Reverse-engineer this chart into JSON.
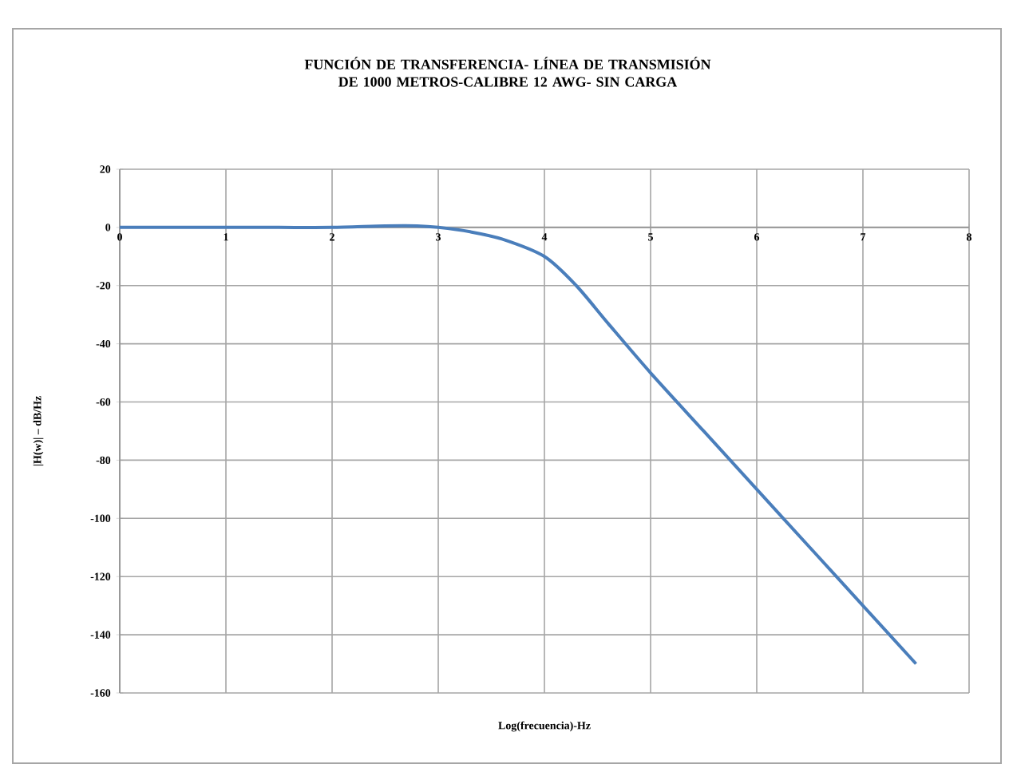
{
  "chart_data": {
    "type": "line",
    "title": "FUNCIÓN DE TRANSFERENCIA- LÍNEA DE TRANSMISIÓN DE 1000 METROS-CALIBRE 12 AWG- SIN CARGA",
    "xlabel": "Log(frecuencia)-Hz",
    "ylabel": "|H(w)| – dB/Hz",
    "x": [
      0,
      0.5,
      1,
      1.5,
      2,
      2.5,
      2.8,
      3,
      3.3,
      3.6,
      4,
      4.3,
      4.6,
      5,
      5.5,
      6,
      6.5,
      7,
      7.5
    ],
    "values": [
      0,
      0,
      0,
      0,
      0,
      0.5,
      0.5,
      0,
      -1.5,
      -4,
      -10,
      -20,
      -33,
      -50,
      -70,
      -90,
      -110,
      -130,
      -150
    ],
    "color": "#4a7ebb",
    "xlim": [
      0,
      8
    ],
    "ylim": [
      -160,
      20
    ],
    "xticks": [
      0,
      1,
      2,
      3,
      4,
      5,
      6,
      7,
      8
    ],
    "yticks": [
      -160,
      -140,
      -120,
      -100,
      -80,
      -60,
      -40,
      -20,
      0,
      20
    ],
    "grid": true
  }
}
